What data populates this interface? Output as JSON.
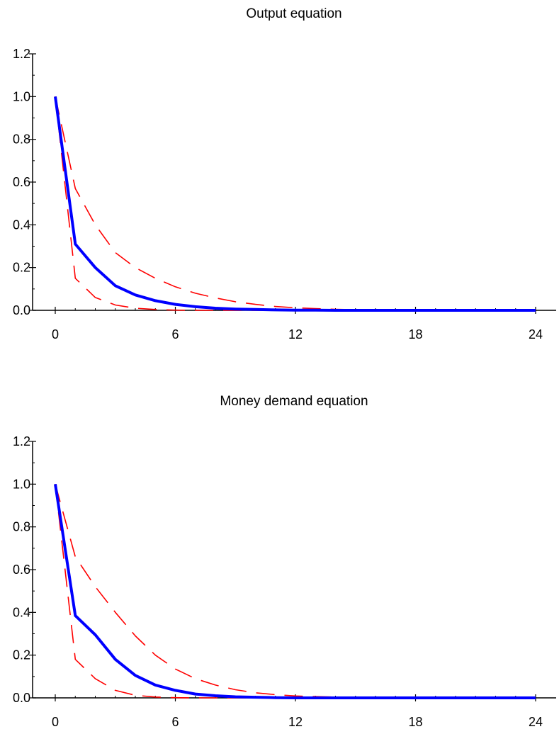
{
  "chart_data": [
    {
      "type": "line",
      "title": "Output equation",
      "xlabel": "",
      "ylabel": "",
      "xlim": [
        0,
        24
      ],
      "ylim": [
        0,
        1.2
      ],
      "xticks": [
        "0",
        "6",
        "12",
        "18",
        "24"
      ],
      "yticks": [
        "0.0",
        "0.2",
        "0.4",
        "0.6",
        "0.8",
        "1.0",
        "1.2"
      ],
      "grid": false,
      "x": [
        0,
        1,
        2,
        3,
        4,
        5,
        6,
        7,
        8,
        9,
        10,
        11,
        12,
        13,
        14,
        15,
        16,
        17,
        18,
        19,
        20,
        21,
        22,
        23,
        24
      ],
      "series": [
        {
          "role": "response",
          "color": "#0000ff",
          "style": "solid",
          "values": [
            1.0,
            0.31,
            0.2,
            0.115,
            0.072,
            0.045,
            0.028,
            0.017,
            0.01,
            0.006,
            0.004,
            0.002,
            0.001,
            0.001,
            0.0,
            0.0,
            0.0,
            0.0,
            0.0,
            0.0,
            0.0,
            0.0,
            0.0,
            0.0,
            0.0
          ]
        },
        {
          "role": "upper band",
          "color": "#ff0000",
          "style": "dashed",
          "values": [
            1.0,
            0.57,
            0.4,
            0.27,
            0.2,
            0.15,
            0.11,
            0.08,
            0.058,
            0.04,
            0.028,
            0.018,
            0.012,
            0.008,
            0.005,
            0.003,
            0.002,
            0.001,
            0.0,
            0.0,
            0.0,
            0.0,
            0.0,
            0.0,
            0.0
          ]
        },
        {
          "role": "lower band",
          "color": "#ff0000",
          "style": "dashed",
          "values": [
            1.0,
            0.15,
            0.06,
            0.025,
            0.01,
            0.004,
            0.001,
            0.0,
            0.0,
            0.0,
            0.0,
            0.0,
            0.0,
            0.0,
            0.0,
            0.0,
            0.0,
            0.0,
            0.0,
            0.0,
            0.0,
            0.0,
            0.0,
            0.0,
            0.0
          ]
        }
      ]
    },
    {
      "type": "line",
      "title": "Money demand equation",
      "xlabel": "",
      "ylabel": "",
      "xlim": [
        0,
        24
      ],
      "ylim": [
        0,
        1.2
      ],
      "xticks": [
        "0",
        "6",
        "12",
        "18",
        "24"
      ],
      "yticks": [
        "0.0",
        "0.2",
        "0.4",
        "0.6",
        "0.8",
        "1.0",
        "1.2"
      ],
      "grid": false,
      "x": [
        0,
        1,
        2,
        3,
        4,
        5,
        6,
        7,
        8,
        9,
        10,
        11,
        12,
        13,
        14,
        15,
        16,
        17,
        18,
        19,
        20,
        21,
        22,
        23,
        24
      ],
      "series": [
        {
          "role": "response",
          "color": "#0000ff",
          "style": "solid",
          "values": [
            1.0,
            0.385,
            0.295,
            0.18,
            0.105,
            0.06,
            0.035,
            0.018,
            0.01,
            0.005,
            0.003,
            0.001,
            0.0,
            0.0,
            0.0,
            0.0,
            0.0,
            0.0,
            0.0,
            0.0,
            0.0,
            0.0,
            0.0,
            0.0,
            0.0
          ]
        },
        {
          "role": "upper band",
          "color": "#ff0000",
          "style": "dashed",
          "values": [
            1.0,
            0.66,
            0.52,
            0.4,
            0.29,
            0.2,
            0.135,
            0.09,
            0.06,
            0.038,
            0.024,
            0.015,
            0.009,
            0.006,
            0.004,
            0.002,
            0.001,
            0.0,
            0.0,
            0.0,
            0.0,
            0.0,
            0.0,
            0.0,
            0.0
          ]
        },
        {
          "role": "lower band",
          "color": "#ff0000",
          "style": "dashed",
          "values": [
            1.0,
            0.18,
            0.09,
            0.035,
            0.012,
            0.004,
            0.001,
            0.0,
            0.0,
            0.0,
            0.0,
            0.0,
            0.0,
            0.0,
            0.0,
            0.0,
            0.0,
            0.0,
            0.0,
            0.0,
            0.0,
            0.0,
            0.0,
            0.0,
            0.0
          ]
        }
      ]
    }
  ]
}
